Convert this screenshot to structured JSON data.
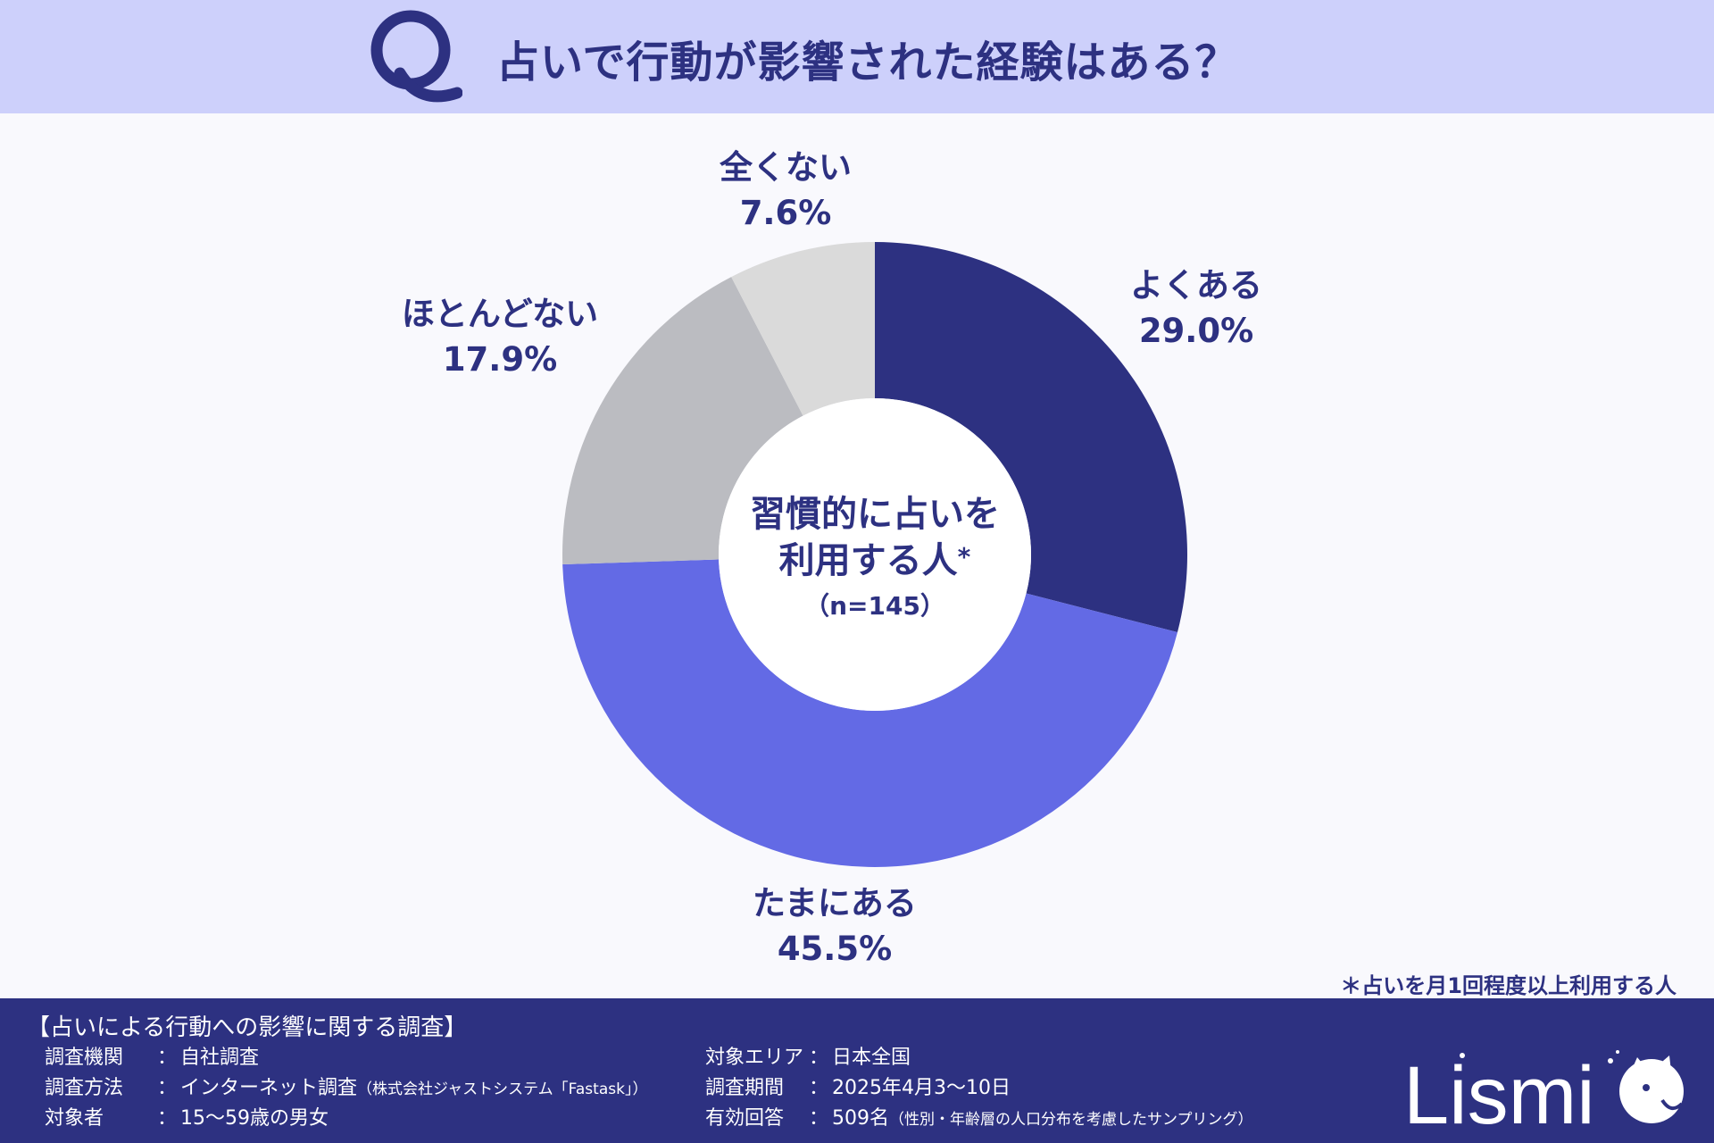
{
  "header": {
    "q_letter": "Q",
    "title": "占いで行動が影響された経験はある？"
  },
  "chart_data": {
    "type": "pie",
    "donut": true,
    "center_label": [
      "習慣的に占いを",
      "利用する人"
    ],
    "center_asterisk": "*",
    "center_n": "（n=145）",
    "slices": [
      {
        "label": "よくある",
        "value": 29.0,
        "display": "29.0%",
        "color": "#2d3181"
      },
      {
        "label": "たまにある",
        "value": 45.5,
        "display": "45.5%",
        "color": "#636ae5"
      },
      {
        "label": "ほとんどない",
        "value": 17.9,
        "display": "17.9%",
        "color": "#bbbcc1"
      },
      {
        "label": "全くない",
        "value": 7.6,
        "display": "7.6%",
        "color": "#dadada"
      }
    ]
  },
  "footnote": "＊占いを月1回程度以上利用する人",
  "footer": {
    "survey_title": "【占いによる行動への影響に関する調査】",
    "left": [
      {
        "key": "調査機関",
        "value": "自社調査",
        "note": ""
      },
      {
        "key": "調査方法",
        "value": "インターネット調査",
        "note": "（株式会社ジャストシステム「Fastask」）"
      },
      {
        "key": "対象者",
        "value": "15〜59歳の男女",
        "note": ""
      }
    ],
    "right": [
      {
        "key": "対象エリア",
        "value": "日本全国",
        "note": ""
      },
      {
        "key": "調査期間",
        "value": "2025年4月3〜10日",
        "note": ""
      },
      {
        "key": "有効回答",
        "value": "509名",
        "note": "（性別・年齢層の人口分布を考慮したサンプリング）"
      }
    ],
    "separator": "：",
    "logo_text": "Lismi"
  }
}
